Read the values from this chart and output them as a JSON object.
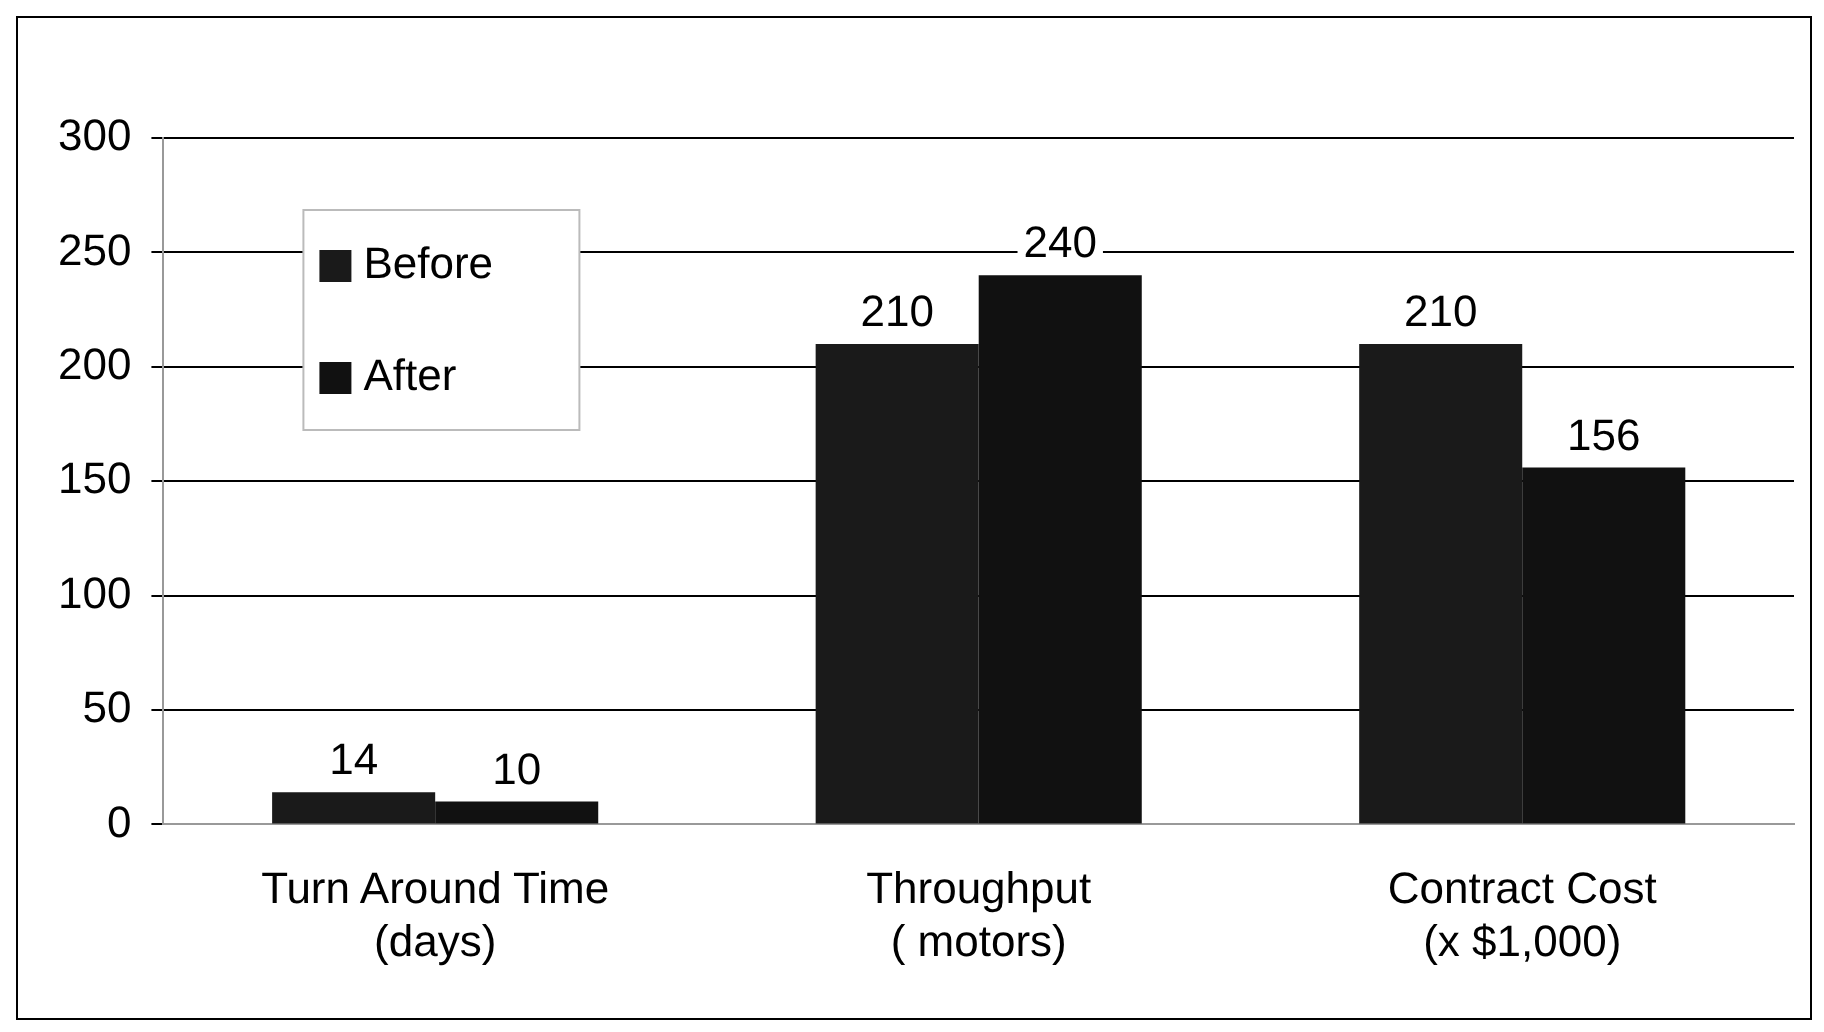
{
  "chart_data": {
    "type": "bar",
    "categories": [
      "Turn Around Time\n(days)",
      "Throughput\n( motors)",
      "Contract Cost\n(x $1,000)"
    ],
    "series": [
      {
        "name": "Before",
        "color": "#1a1a1a",
        "values": [
          14,
          210,
          210
        ]
      },
      {
        "name": "After",
        "color": "#111111",
        "values": [
          10,
          240,
          156
        ]
      }
    ],
    "ylim": [
      0,
      300
    ],
    "yticks": [
      0,
      50,
      100,
      150,
      200,
      250,
      300
    ],
    "grid": "y",
    "legend": "top left",
    "data_labels": true
  }
}
